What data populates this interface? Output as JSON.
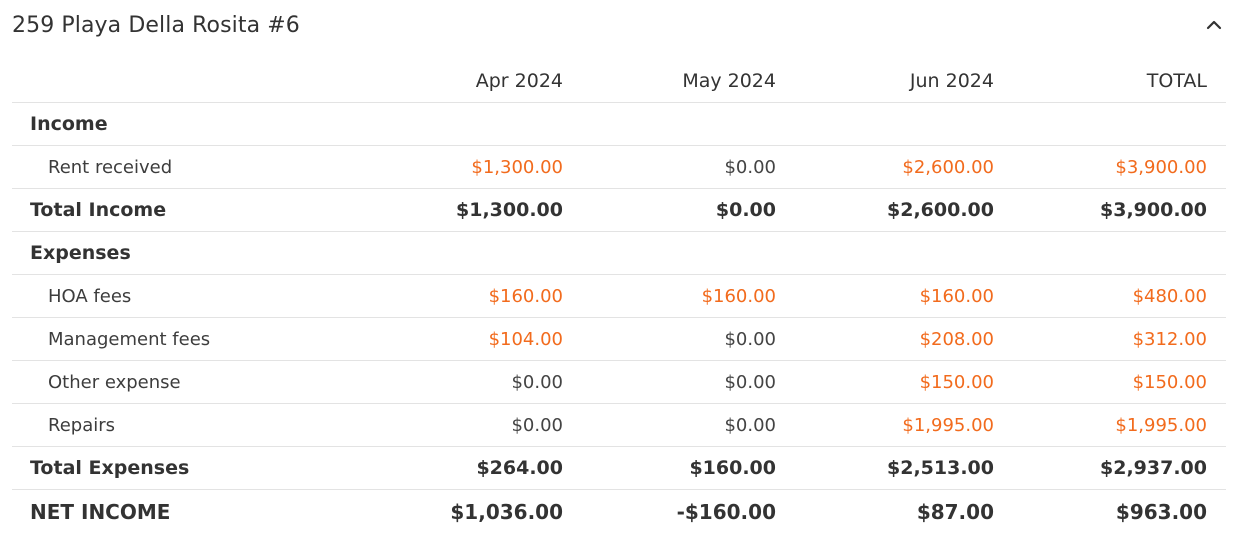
{
  "section": {
    "title": "259 Playa Della Rosita #6",
    "collapse_icon": "chevron-up-icon"
  },
  "columns": [
    "",
    "Apr 2024",
    "May 2024",
    "Jun 2024",
    "TOTAL"
  ],
  "rows": [
    {
      "type": "section",
      "label": "Income",
      "values": [
        "",
        "",
        "",
        ""
      ]
    },
    {
      "type": "item",
      "label": "Rent received",
      "values": [
        "$1,300.00",
        "$0.00",
        "$2,600.00",
        "$3,900.00"
      ],
      "links": [
        true,
        false,
        true,
        true
      ]
    },
    {
      "type": "total",
      "label": "Total Income",
      "values": [
        "$1,300.00",
        "$0.00",
        "$2,600.00",
        "$3,900.00"
      ]
    },
    {
      "type": "section",
      "label": "Expenses",
      "values": [
        "",
        "",
        "",
        ""
      ]
    },
    {
      "type": "item",
      "label": "HOA fees",
      "values": [
        "$160.00",
        "$160.00",
        "$160.00",
        "$480.00"
      ],
      "links": [
        true,
        true,
        true,
        true
      ]
    },
    {
      "type": "item",
      "label": "Management fees",
      "values": [
        "$104.00",
        "$0.00",
        "$208.00",
        "$312.00"
      ],
      "links": [
        true,
        false,
        true,
        true
      ]
    },
    {
      "type": "item",
      "label": "Other expense",
      "values": [
        "$0.00",
        "$0.00",
        "$150.00",
        "$150.00"
      ],
      "links": [
        false,
        false,
        true,
        true
      ]
    },
    {
      "type": "item",
      "label": "Repairs",
      "values": [
        "$0.00",
        "$0.00",
        "$1,995.00",
        "$1,995.00"
      ],
      "links": [
        false,
        false,
        true,
        true
      ]
    },
    {
      "type": "total",
      "label": "Total Expenses",
      "values": [
        "$264.00",
        "$160.00",
        "$2,513.00",
        "$2,937.00"
      ]
    },
    {
      "type": "net",
      "label": "NET INCOME",
      "values": [
        "$1,036.00",
        "-$160.00",
        "$87.00",
        "$963.00"
      ]
    }
  ],
  "colors": {
    "link": "#f26b1d",
    "text": "#333333",
    "border": "#e3e3e3"
  }
}
